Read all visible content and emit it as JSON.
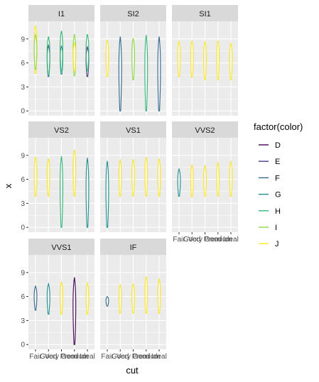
{
  "chart_data": {
    "type": "violin-facet",
    "xlabel": "cut",
    "ylabel": "x",
    "ylim": [
      -0.6,
      11.2
    ],
    "y_ticks": [
      0,
      3,
      6,
      9
    ],
    "cut_levels": [
      "Fair",
      "Good",
      "Very Good",
      "Premium",
      "Ideal"
    ],
    "x_tick_labels": [
      "Fair",
      "Good",
      "Very Good",
      "Premium",
      "Ideal"
    ],
    "x_tick_labels_render": [
      "Fair",
      "Good",
      "Very Good",
      "Premium",
      "Ideal"
    ],
    "panel_background": "#ebebeb",
    "grid_color": "#ffffff",
    "strip_background": "#d9d9d9",
    "legend": {
      "title": "factor(color)",
      "position": "right",
      "entries": [
        {
          "label": "D",
          "color": "#440154"
        },
        {
          "label": "E",
          "color": "#443A83"
        },
        {
          "label": "F",
          "color": "#31688E"
        },
        {
          "label": "G",
          "color": "#21908C"
        },
        {
          "label": "H",
          "color": "#35B779"
        },
        {
          "label": "I",
          "color": "#8FD744"
        },
        {
          "label": "J",
          "color": "#FDE725"
        }
      ]
    },
    "facets": [
      {
        "label": "I1",
        "show_x_labels": false,
        "violins": [
          {
            "cut": 0,
            "color": "J",
            "min": 4.7,
            "max": 10.7
          },
          {
            "cut": 0,
            "color": "I",
            "min": 5.2,
            "max": 9.5
          },
          {
            "cut": 1,
            "color": "F",
            "min": 4.3,
            "max": 8.2
          },
          {
            "cut": 1,
            "color": "H",
            "min": 4.5,
            "max": 9.3
          },
          {
            "cut": 2,
            "color": "G",
            "min": 4.6,
            "max": 8.1
          },
          {
            "cut": 2,
            "color": "H",
            "min": 5.0,
            "max": 10.0
          },
          {
            "cut": 3,
            "color": "I",
            "min": 4.4,
            "max": 9.6
          },
          {
            "cut": 3,
            "color": "J",
            "min": 5.0,
            "max": 8.5
          },
          {
            "cut": 4,
            "color": "E",
            "min": 4.3,
            "max": 8.0
          },
          {
            "cut": 4,
            "color": "H",
            "min": 5.0,
            "max": 9.6
          }
        ]
      },
      {
        "label": "SI2",
        "show_x_labels": false,
        "violins": [
          {
            "cut": 0,
            "color": "J",
            "min": 4.3,
            "max": 8.9
          },
          {
            "cut": 1,
            "color": "F",
            "min": 0.0,
            "max": 9.3
          },
          {
            "cut": 2,
            "color": "I",
            "min": 3.9,
            "max": 9.1
          },
          {
            "cut": 3,
            "color": "H",
            "min": 0.0,
            "max": 9.5
          },
          {
            "cut": 4,
            "color": "F",
            "min": 0.0,
            "max": 9.3
          }
        ]
      },
      {
        "label": "SI1",
        "show_x_labels": false,
        "violins": [
          {
            "cut": 0,
            "color": "J",
            "min": 4.3,
            "max": 8.7
          },
          {
            "cut": 1,
            "color": "J",
            "min": 4.2,
            "max": 8.8
          },
          {
            "cut": 2,
            "color": "J",
            "min": 3.9,
            "max": 8.7
          },
          {
            "cut": 3,
            "color": "J",
            "min": 3.9,
            "max": 8.8
          },
          {
            "cut": 4,
            "color": "J",
            "min": 3.9,
            "max": 8.5
          }
        ]
      },
      {
        "label": "VS2",
        "show_x_labels": false,
        "violins": [
          {
            "cut": 0,
            "color": "J",
            "min": 3.9,
            "max": 8.8
          },
          {
            "cut": 1,
            "color": "J",
            "min": 3.9,
            "max": 8.6
          },
          {
            "cut": 2,
            "color": "H",
            "min": 0.0,
            "max": 8.9
          },
          {
            "cut": 3,
            "color": "J",
            "min": 3.9,
            "max": 9.7
          },
          {
            "cut": 4,
            "color": "G",
            "min": 0.0,
            "max": 8.7
          }
        ]
      },
      {
        "label": "VS1",
        "show_x_labels": false,
        "violins": [
          {
            "cut": 0,
            "color": "G",
            "min": 0.0,
            "max": 8.3
          },
          {
            "cut": 1,
            "color": "J",
            "min": 3.9,
            "max": 8.4
          },
          {
            "cut": 2,
            "color": "J",
            "min": 3.9,
            "max": 8.5
          },
          {
            "cut": 3,
            "color": "J",
            "min": 3.9,
            "max": 8.8
          },
          {
            "cut": 4,
            "color": "J",
            "min": 3.9,
            "max": 8.6
          }
        ]
      },
      {
        "label": "VVS2",
        "show_x_labels": true,
        "violins": [
          {
            "cut": 0,
            "color": "G",
            "min": 3.9,
            "max": 7.3
          },
          {
            "cut": 1,
            "color": "J",
            "min": 3.8,
            "max": 7.8
          },
          {
            "cut": 2,
            "color": "J",
            "min": 3.9,
            "max": 7.7
          },
          {
            "cut": 3,
            "color": "J",
            "min": 3.9,
            "max": 8.1
          },
          {
            "cut": 4,
            "color": "J",
            "min": 3.9,
            "max": 8.2
          }
        ]
      },
      {
        "label": "VVS1",
        "show_x_labels": true,
        "violins": [
          {
            "cut": 0,
            "color": "F",
            "min": 4.3,
            "max": 7.3
          },
          {
            "cut": 1,
            "color": "G",
            "min": 3.8,
            "max": 7.6
          },
          {
            "cut": 2,
            "color": "J",
            "min": 3.8,
            "max": 7.8
          },
          {
            "cut": 3,
            "color": "D",
            "min": 0.0,
            "max": 8.4
          },
          {
            "cut": 4,
            "color": "J",
            "min": 3.8,
            "max": 7.7
          }
        ]
      },
      {
        "label": "IF",
        "show_x_labels": true,
        "violins": [
          {
            "cut": 0,
            "color": "F",
            "min": 4.8,
            "max": 6.0
          },
          {
            "cut": 1,
            "color": "J",
            "min": 3.9,
            "max": 7.5
          },
          {
            "cut": 2,
            "color": "J",
            "min": 3.9,
            "max": 7.6
          },
          {
            "cut": 3,
            "color": "J",
            "min": 3.9,
            "max": 8.5
          },
          {
            "cut": 4,
            "color": "J",
            "min": 3.9,
            "max": 8.2
          }
        ]
      }
    ]
  }
}
